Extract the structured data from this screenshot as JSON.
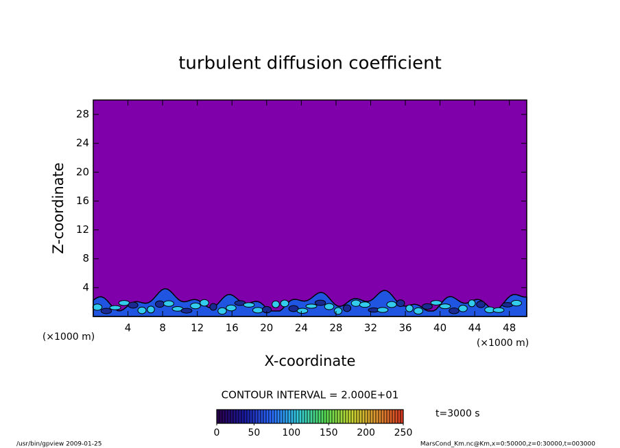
{
  "chart_data": {
    "type": "contour",
    "title": "turbulent diffusion coefficient",
    "xlabel": "X-coordinate",
    "ylabel": "Z-coordinate",
    "x_unit_label": "(×1000 m)",
    "y_unit_label": "(×1000 m)",
    "xlim": [
      0,
      50
    ],
    "xticks": [
      4,
      8,
      12,
      16,
      20,
      24,
      28,
      32,
      36,
      40,
      44,
      48
    ],
    "ylim": [
      0,
      30
    ],
    "yticks": [
      4,
      8,
      12,
      16,
      20,
      24,
      28
    ],
    "background_color": "#7f00aa",
    "contour_interval_label": "CONTOUR INTERVAL = 2.000E+01",
    "colorbar": {
      "clim": [
        0,
        250
      ],
      "ticks": [
        0,
        50,
        100,
        150,
        200,
        250
      ],
      "colors": [
        "#2a0050",
        "#1a1aa0",
        "#2a6aff",
        "#33ccdd",
        "#55dd55",
        "#c8d830",
        "#e09030",
        "#d83020"
      ]
    },
    "time_label": "t=3000 s",
    "footer_left": "/usr/bin/gpview  2009-01-25",
    "footer_right": "MarsCond_Km.nc@Km,x=0:50000,z=0:30000,t=003000"
  }
}
